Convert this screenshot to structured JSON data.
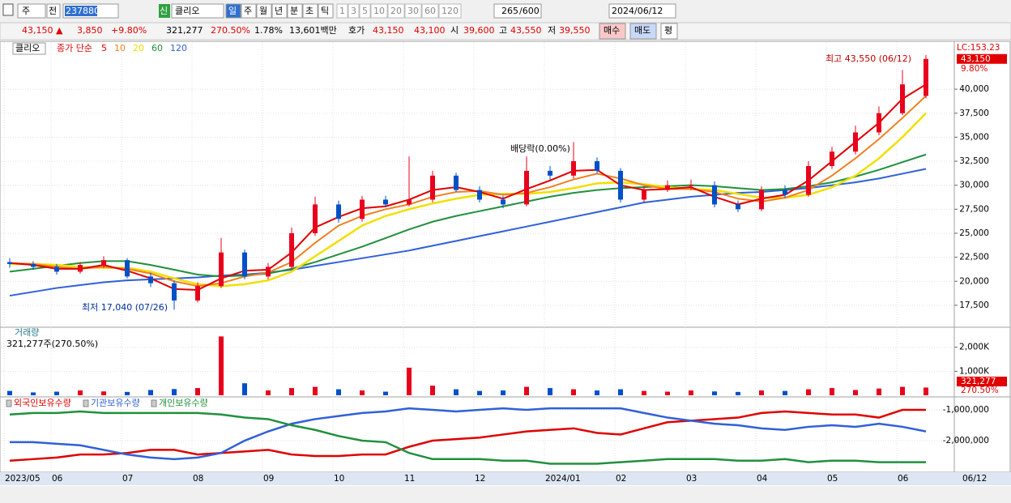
{
  "toolbar": {
    "items": [
      "주",
      "전"
    ],
    "code": "237880",
    "new": "신",
    "name": "클리오",
    "periods": [
      "일",
      "주",
      "월",
      "년",
      "분",
      "초",
      "틱"
    ],
    "minutes": [
      "1",
      "3",
      "5",
      "10",
      "20",
      "30",
      "60",
      "120"
    ],
    "count": "265",
    "total": "/600",
    "date": "2024/06/12"
  },
  "quote": {
    "price": "43,150 ▲",
    "change": "3,850",
    "rate": "+9.80%",
    "volume": "321,277",
    "volume_rate": "270.50%",
    "turnover": "1.78%",
    "amount": "13,601백만",
    "bidask_label": "호가",
    "ask": "43,150",
    "bid": "43,100",
    "open_label": "시",
    "open": "39,600",
    "high_label": "고",
    "high": "43,550",
    "low_label": "저",
    "low": "39,550",
    "buy": "매수",
    "sell": "매도",
    "avg": "평"
  },
  "chart_data": [
    {
      "type": "candlestick",
      "title": "클리오",
      "ma_label": "종가 단순",
      "categories": [
        "2023/05",
        null,
        "06",
        null,
        null,
        "07",
        null,
        null,
        "08",
        null,
        null,
        "09",
        null,
        null,
        "10",
        null,
        null,
        "11",
        null,
        null,
        "12",
        null,
        null,
        "2024/01",
        null,
        null,
        "02",
        null,
        null,
        "03",
        null,
        null,
        "04",
        null,
        null,
        "05",
        null,
        null,
        "06",
        null
      ],
      "candles": {
        "open": [
          22000,
          21800,
          21500,
          21000,
          21700,
          22200,
          20500,
          19800,
          18000,
          19500,
          23000,
          20500,
          21500,
          25000,
          28000,
          26500,
          28500,
          28000,
          28500,
          31000,
          29500,
          28500,
          28000,
          31500,
          31000,
          32500,
          31500,
          28500,
          29500,
          30000,
          30000,
          28000,
          27500,
          29500,
          29000,
          32000,
          33500,
          35500,
          37500,
          39300
        ],
        "high": [
          22400,
          22100,
          21800,
          22000,
          22600,
          22400,
          20900,
          20100,
          19900,
          24500,
          23300,
          21900,
          25600,
          28800,
          28400,
          28900,
          28900,
          33000,
          31500,
          31300,
          29900,
          28900,
          33000,
          32000,
          34500,
          32900,
          31800,
          29900,
          30500,
          30600,
          30400,
          28400,
          29900,
          30000,
          32500,
          34000,
          36200,
          38200,
          42000,
          43550
        ],
        "low": [
          21400,
          21200,
          20700,
          20800,
          21400,
          20300,
          19400,
          17040,
          17800,
          19300,
          20200,
          20200,
          21300,
          24700,
          26100,
          26200,
          27700,
          27800,
          28200,
          29300,
          28200,
          27600,
          27800,
          30600,
          30700,
          31200,
          28200,
          28200,
          29300,
          29500,
          27700,
          27200,
          27300,
          28700,
          28800,
          31700,
          33200,
          35200,
          37300,
          39050
        ],
        "close": [
          21800,
          21500,
          21000,
          21700,
          22200,
          20500,
          19800,
          18000,
          19500,
          23000,
          20500,
          21500,
          25000,
          28000,
          26500,
          28500,
          28000,
          28500,
          31000,
          29500,
          28500,
          28000,
          31500,
          31000,
          32500,
          31500,
          28500,
          29500,
          30000,
          30000,
          28000,
          27500,
          29500,
          29000,
          32000,
          33500,
          35500,
          37500,
          40500,
          43150
        ]
      },
      "up_color": "#e8001c",
      "down_color": "#0050c8",
      "series": [
        {
          "name": "5",
          "color": "#e00000",
          "values": [
            21900,
            21700,
            21300,
            21300,
            21700,
            21100,
            20300,
            19200,
            19100,
            20300,
            21100,
            21200,
            23000,
            25600,
            26700,
            27600,
            27800,
            28500,
            29500,
            29800,
            29300,
            28600,
            29600,
            30500,
            31500,
            31600,
            30000,
            29500,
            29600,
            29800,
            28800,
            28000,
            28600,
            29000,
            30500,
            32500,
            34500,
            36500,
            39000,
            40500
          ]
        },
        {
          "name": "10",
          "color": "#f08020",
          "values": [
            21900,
            21800,
            21500,
            21300,
            21500,
            21300,
            20800,
            20000,
            19500,
            19800,
            20500,
            20900,
            22000,
            24000,
            25800,
            26800,
            27500,
            28000,
            28800,
            29300,
            29400,
            29000,
            29200,
            29800,
            30600,
            31200,
            30700,
            30000,
            29600,
            29600,
            29300,
            28600,
            28300,
            28700,
            29500,
            31000,
            32800,
            34800,
            37000,
            39300
          ]
        },
        {
          "name": "20",
          "color": "#f0e000",
          "values": [
            21800,
            21800,
            21700,
            21500,
            21400,
            21400,
            21000,
            20300,
            19700,
            19500,
            19700,
            20100,
            21000,
            22600,
            24200,
            25800,
            26800,
            27500,
            28100,
            28600,
            29000,
            29100,
            29100,
            29300,
            29700,
            30200,
            30300,
            30100,
            29800,
            29600,
            29500,
            29100,
            28700,
            28700,
            29000,
            29800,
            31000,
            32800,
            35000,
            37500
          ]
        },
        {
          "name": "60",
          "color": "#20903c",
          "values": [
            21000,
            21300,
            21600,
            21900,
            22100,
            22100,
            21700,
            21200,
            20700,
            20500,
            20600,
            20800,
            21300,
            22000,
            22800,
            23600,
            24500,
            25400,
            26200,
            26800,
            27300,
            27800,
            28300,
            28800,
            29200,
            29500,
            29700,
            29800,
            29900,
            30000,
            29900,
            29700,
            29500,
            29600,
            29900,
            30300,
            30900,
            31600,
            32400,
            33200
          ]
        },
        {
          "name": "120",
          "color": "#3060d8",
          "values": [
            18500,
            18900,
            19300,
            19600,
            19900,
            20100,
            20200,
            20300,
            20400,
            20600,
            20700,
            20900,
            21200,
            21600,
            22000,
            22400,
            22800,
            23200,
            23700,
            24200,
            24700,
            25200,
            25700,
            26200,
            26700,
            27200,
            27700,
            28200,
            28500,
            28800,
            29000,
            29200,
            29300,
            29500,
            29700,
            30000,
            30300,
            30700,
            31200,
            31700
          ]
        }
      ],
      "ylim": [
        15300,
        44900
      ],
      "yticks": [
        {
          "value": 17500,
          "label": "17,500"
        },
        {
          "value": 20000,
          "label": "20,000"
        },
        {
          "value": 22500,
          "label": "22,500"
        },
        {
          "value": 25000,
          "label": "25,000"
        },
        {
          "value": 27500,
          "label": "27,500"
        },
        {
          "value": 30000,
          "label": "30,000"
        },
        {
          "value": 32500,
          "label": "32,500"
        },
        {
          "value": 35000,
          "label": "35,000"
        },
        {
          "value": 37500,
          "label": "37,500"
        },
        {
          "value": 40000,
          "label": "40,000"
        }
      ],
      "grid": true,
      "right_labels": {
        "lc": "LC:153.23",
        "last": "43,150",
        "rate": "9.80%"
      },
      "annotations": {
        "high": "최고 43,550 (06/12)",
        "low": "최저 17,040 (07/26)",
        "dividend": "배당락(0.00%)"
      },
      "cursor_date": "06/12"
    },
    {
      "type": "bar",
      "title": "거래량",
      "subtitle": "321,277주(270.50%)",
      "values": [
        180000,
        120000,
        150000,
        200000,
        160000,
        140000,
        220000,
        260000,
        300000,
        2450000,
        500000,
        200000,
        300000,
        350000,
        250000,
        200000,
        150000,
        1150000,
        400000,
        250000,
        180000,
        200000,
        350000,
        300000,
        250000,
        200000,
        250000,
        180000,
        150000,
        200000,
        160000,
        140000,
        200000,
        180000,
        250000,
        300000,
        220000,
        280000,
        350000,
        321277
      ],
      "up_color": "#e8001c",
      "down_color": "#0050c8",
      "ylim": [
        0,
        2800000
      ],
      "yticks": [
        {
          "value": 1000000,
          "label": "1,000K"
        },
        {
          "value": 2000000,
          "label": "2,000K"
        }
      ],
      "right_labels": [
        "321,277",
        "270.50%"
      ]
    },
    {
      "type": "line",
      "series": [
        {
          "name": "외국인보유수량",
          "color": "#e00000",
          "values": [
            -2650000,
            -2600000,
            -2550000,
            -2450000,
            -2450000,
            -2400000,
            -2300000,
            -2300000,
            -2450000,
            -2400000,
            -2350000,
            -2300000,
            -2450000,
            -2500000,
            -2500000,
            -2450000,
            -2450000,
            -2200000,
            -2000000,
            -1950000,
            -1900000,
            -1800000,
            -1700000,
            -1650000,
            -1600000,
            -1750000,
            -1800000,
            -1600000,
            -1400000,
            -1350000,
            -1300000,
            -1250000,
            -1100000,
            -1050000,
            -1100000,
            -1150000,
            -1150000,
            -1250000,
            -1000000,
            -1000000
          ]
        },
        {
          "name": "기관보유수량",
          "color": "#3060d8",
          "values": [
            -2050000,
            -2050000,
            -2100000,
            -2150000,
            -2300000,
            -2450000,
            -2550000,
            -2600000,
            -2550000,
            -2400000,
            -2000000,
            -1700000,
            -1450000,
            -1300000,
            -1200000,
            -1100000,
            -1050000,
            -950000,
            -1000000,
            -1050000,
            -1000000,
            -950000,
            -1000000,
            -950000,
            -950000,
            -950000,
            -950000,
            -1100000,
            -1250000,
            -1350000,
            -1450000,
            -1500000,
            -1600000,
            -1650000,
            -1550000,
            -1500000,
            -1550000,
            -1450000,
            -1550000,
            -1700000
          ]
        },
        {
          "name": "개인보유수량",
          "color": "#20903c",
          "values": [
            -1150000,
            -1100000,
            -1100000,
            -1050000,
            -1100000,
            -1100000,
            -1100000,
            -1100000,
            -1100000,
            -1150000,
            -1250000,
            -1300000,
            -1500000,
            -1650000,
            -1850000,
            -2000000,
            -2050000,
            -2400000,
            -2600000,
            -2600000,
            -2600000,
            -2650000,
            -2650000,
            -2750000,
            -2750000,
            -2750000,
            -2700000,
            -2650000,
            -2600000,
            -2600000,
            -2600000,
            -2650000,
            -2650000,
            -2600000,
            -2700000,
            -2650000,
            -2650000,
            -2700000,
            -2700000,
            -2700000
          ]
        }
      ],
      "ylim": [
        -3000000,
        -630000
      ],
      "yticks": [
        {
          "value": -1000000,
          "label": "-1,000,000"
        },
        {
          "value": -2000000,
          "label": "-2,000,000"
        }
      ]
    }
  ]
}
